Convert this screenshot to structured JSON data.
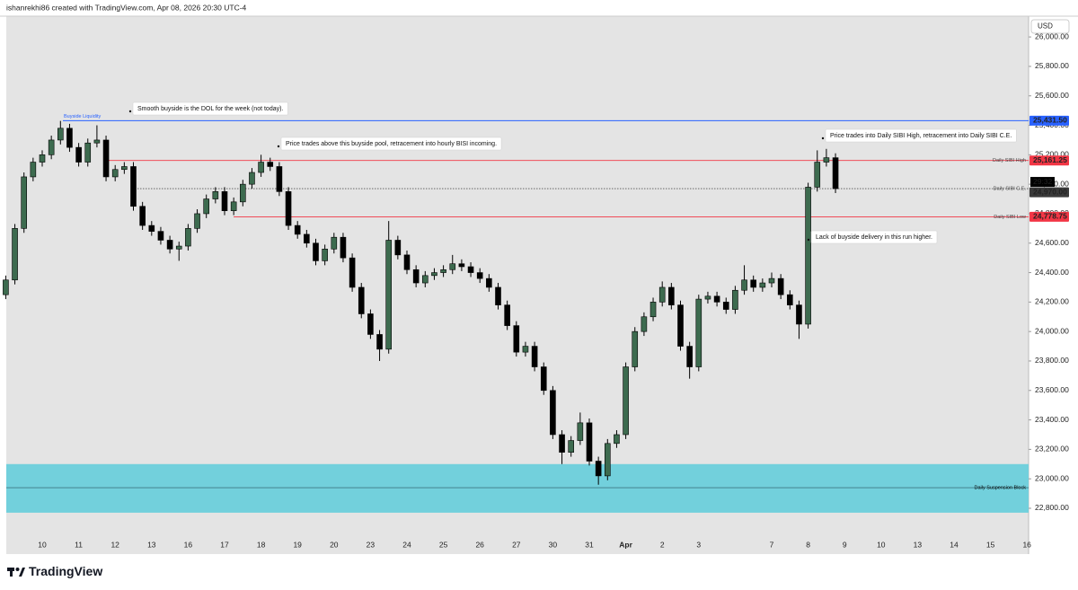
{
  "header": "ishanrekhi86 created with TradingView.com, Apr 08, 2026 20:30 UTC-4",
  "brand": "TradingView",
  "chart_data": {
    "type": "candlestick",
    "currency": "USD",
    "up_color": "#3d6b4f",
    "down_color": "#000000",
    "wick_color": "#000000",
    "background": "#e4e4e4",
    "grid": false,
    "categories": [
      null,
      null,
      null,
      null,
      "10",
      null,
      null,
      null,
      "11",
      null,
      null,
      null,
      "12",
      null,
      null,
      null,
      "13",
      null,
      null,
      null,
      "16",
      null,
      null,
      null,
      "17",
      null,
      null,
      null,
      "18",
      null,
      null,
      null,
      "19",
      null,
      null,
      null,
      "20",
      null,
      null,
      null,
      "23",
      null,
      null,
      null,
      "24",
      null,
      null,
      null,
      "25",
      null,
      null,
      null,
      "26",
      null,
      null,
      null,
      "27",
      null,
      null,
      null,
      "30",
      null,
      null,
      null,
      "31",
      null,
      null,
      null,
      "Apr",
      null,
      null,
      null,
      "2",
      null,
      null,
      null,
      "3",
      null,
      null,
      null,
      null,
      null,
      null,
      null,
      "7",
      null,
      null,
      null,
      "8",
      null,
      null,
      null,
      "9",
      null,
      null,
      null,
      "10",
      null,
      null,
      null,
      "13",
      null,
      null,
      null,
      "14",
      null,
      null,
      null,
      "15",
      null,
      null,
      null,
      "16"
    ],
    "open": [
      24250,
      24350,
      24700,
      25050,
      25150,
      25200,
      25300,
      25380,
      25250,
      25150,
      25280,
      25300,
      25050,
      25100,
      25120,
      24850,
      24720,
      24680,
      24620,
      24560,
      24580,
      24700,
      24800,
      24900,
      24950,
      24820,
      24880,
      25000,
      25080,
      25150,
      25120,
      24950,
      24720,
      24660,
      24600,
      24480,
      24560,
      24640,
      24500,
      24300,
      24120,
      23980,
      23880,
      24620,
      24520,
      24420,
      24330,
      24380,
      24400,
      24420,
      24460,
      24440,
      24400,
      24360,
      24300,
      24180,
      24040,
      23860,
      23900,
      23760,
      23600,
      23300,
      23180,
      23260,
      23380,
      23120,
      23020,
      23240,
      23300,
      23760,
      24000,
      24100,
      24200,
      24300,
      24180,
      23900,
      23760,
      24220,
      24240,
      24200,
      24150,
      24280,
      24350,
      24300,
      24330,
      24360,
      24250,
      24180,
      24050,
      24980,
      25150,
      25180,
      null,
      null,
      null,
      null,
      null,
      null,
      null,
      null,
      null,
      null,
      null,
      null,
      null,
      null,
      null,
      null,
      null,
      null,
      null,
      null,
      null
    ],
    "high": [
      24380,
      24730,
      25080,
      25180,
      25230,
      25330,
      25430,
      25410,
      25280,
      25310,
      25400,
      25330,
      25130,
      25150,
      25150,
      24880,
      24750,
      24710,
      24650,
      24610,
      24730,
      24830,
      24930,
      24980,
      24980,
      24910,
      25030,
      25110,
      25200,
      25180,
      25150,
      24980,
      24750,
      24690,
      24630,
      24590,
      24670,
      24670,
      24530,
      24330,
      24150,
      24010,
      24750,
      24650,
      24550,
      24450,
      24410,
      24430,
      24450,
      24520,
      24490,
      24470,
      24430,
      24390,
      24330,
      24210,
      24070,
      23930,
      23930,
      23790,
      23630,
      23330,
      23290,
      23450,
      23410,
      23150,
      23270,
      23330,
      23790,
      24030,
      24130,
      24230,
      24340,
      24330,
      24210,
      23930,
      24250,
      24270,
      24270,
      24230,
      24310,
      24450,
      24380,
      24360,
      24400,
      24390,
      24280,
      24210,
      25010,
      25230,
      25240,
      25210,
      null,
      null,
      null,
      null,
      null,
      null,
      null,
      null,
      null,
      null,
      null,
      null,
      null,
      null,
      null,
      null,
      null,
      null,
      null,
      null,
      null
    ],
    "low": [
      24220,
      24320,
      24670,
      25020,
      25120,
      25170,
      25270,
      25220,
      25120,
      25120,
      25250,
      25020,
      25020,
      25070,
      24820,
      24690,
      24650,
      24590,
      24530,
      24480,
      24550,
      24670,
      24770,
      24870,
      24790,
      24790,
      24850,
      24970,
      25050,
      25090,
      24920,
      24690,
      24630,
      24570,
      24450,
      24450,
      24530,
      24470,
      24270,
      24090,
      23950,
      23800,
      23850,
      24490,
      24390,
      24300,
      24300,
      24350,
      24370,
      24390,
      24410,
      24370,
      24330,
      24270,
      24150,
      24010,
      23830,
      23830,
      23730,
      23570,
      23270,
      23100,
      23150,
      23230,
      23090,
      22960,
      22990,
      23210,
      23270,
      23730,
      23970,
      24070,
      24170,
      24150,
      23870,
      23680,
      23730,
      24190,
      24170,
      24120,
      24120,
      24250,
      24270,
      24270,
      24300,
      24220,
      24150,
      23950,
      24020,
      24950,
      25120,
      24940,
      null,
      null,
      null,
      null,
      null,
      null,
      null,
      null,
      null,
      null,
      null,
      null,
      null,
      null,
      null,
      null,
      null,
      null,
      null,
      null,
      null
    ],
    "close": [
      24350,
      24700,
      25050,
      25150,
      25200,
      25300,
      25380,
      25250,
      25150,
      25280,
      25300,
      25050,
      25100,
      25120,
      24850,
      24720,
      24680,
      24620,
      24560,
      24580,
      24700,
      24800,
      24900,
      24950,
      24820,
      24880,
      25000,
      25080,
      25150,
      25120,
      24950,
      24720,
      24660,
      24600,
      24480,
      24560,
      24640,
      24500,
      24300,
      24120,
      23980,
      23880,
      24620,
      24520,
      24420,
      24330,
      24380,
      24400,
      24420,
      24460,
      24440,
      24400,
      24360,
      24300,
      24180,
      24040,
      23860,
      23900,
      23760,
      23600,
      23300,
      23180,
      23260,
      23380,
      23120,
      23020,
      23240,
      23300,
      23760,
      24000,
      24100,
      24200,
      24300,
      24180,
      23900,
      23760,
      24220,
      24240,
      24200,
      24150,
      24280,
      24350,
      24300,
      24330,
      24360,
      24250,
      24180,
      24050,
      24980,
      25150,
      25180,
      24970,
      null,
      null,
      null,
      null,
      null,
      null,
      null,
      null,
      null,
      null,
      null,
      null,
      null,
      null,
      null,
      null,
      null,
      null,
      null,
      null,
      null
    ],
    "ylim": [
      22489,
      26141
    ],
    "yticks": [
      {
        "value": 22800,
        "label": "22,800.00"
      },
      {
        "value": 23000,
        "label": "23,000.00"
      },
      {
        "value": 23200,
        "label": "23,200.00"
      },
      {
        "value": 23400,
        "label": "23,400.00"
      },
      {
        "value": 23600,
        "label": "23,600.00"
      },
      {
        "value": 23800,
        "label": "23,800.00"
      },
      {
        "value": 24000,
        "label": "24,000.00"
      },
      {
        "value": 24200,
        "label": "24,200.00"
      },
      {
        "value": 24400,
        "label": "24,400.00"
      },
      {
        "value": 24600,
        "label": "24,600.00"
      },
      {
        "value": 24800,
        "label": "24,800.00"
      },
      {
        "value": 25000,
        "label": "25,000.00"
      },
      {
        "value": 25200,
        "label": "25,200.00"
      },
      {
        "value": 25400,
        "label": "25,400.00"
      },
      {
        "value": 25600,
        "label": "25,600.00"
      },
      {
        "value": 25800,
        "label": "25,800.00"
      },
      {
        "value": 26000,
        "label": "26,000.00"
      }
    ],
    "levels": [
      {
        "name": "Buyside Liquidity",
        "value": 25431.5,
        "label": "25,431.50",
        "color": "#2962ff",
        "style": "solid"
      },
      {
        "name": "Daily SIBI High",
        "value": 25161.25,
        "label": "25,161.25",
        "color": "#f23645",
        "style": "solid"
      },
      {
        "name": "Daily SIBI C.E.",
        "value": 24970,
        "label": "24,970.00",
        "color": "#555555",
        "style": "dotted",
        "countdown": "29:32"
      },
      {
        "name": "Daily SIBI Low",
        "value": 24778.75,
        "label": "24,778.75",
        "color": "#f23645",
        "style": "solid"
      }
    ],
    "zone": {
      "name": "Daily Suspension Block",
      "top": 23100,
      "bottom": 22770,
      "mid": 22940,
      "color": "#72d0dc"
    },
    "annotations": [
      {
        "text": "Smooth buyside is the DOL for the week (not today)."
      },
      {
        "text": "Price trades above this buyside pool, retracement into hourly BISI incoming."
      },
      {
        "text": "Price trades into Daily SIBI High, retracement into Daily SIBI C.E."
      },
      {
        "text": "Lack of buyside delivery in this run higher."
      }
    ]
  }
}
